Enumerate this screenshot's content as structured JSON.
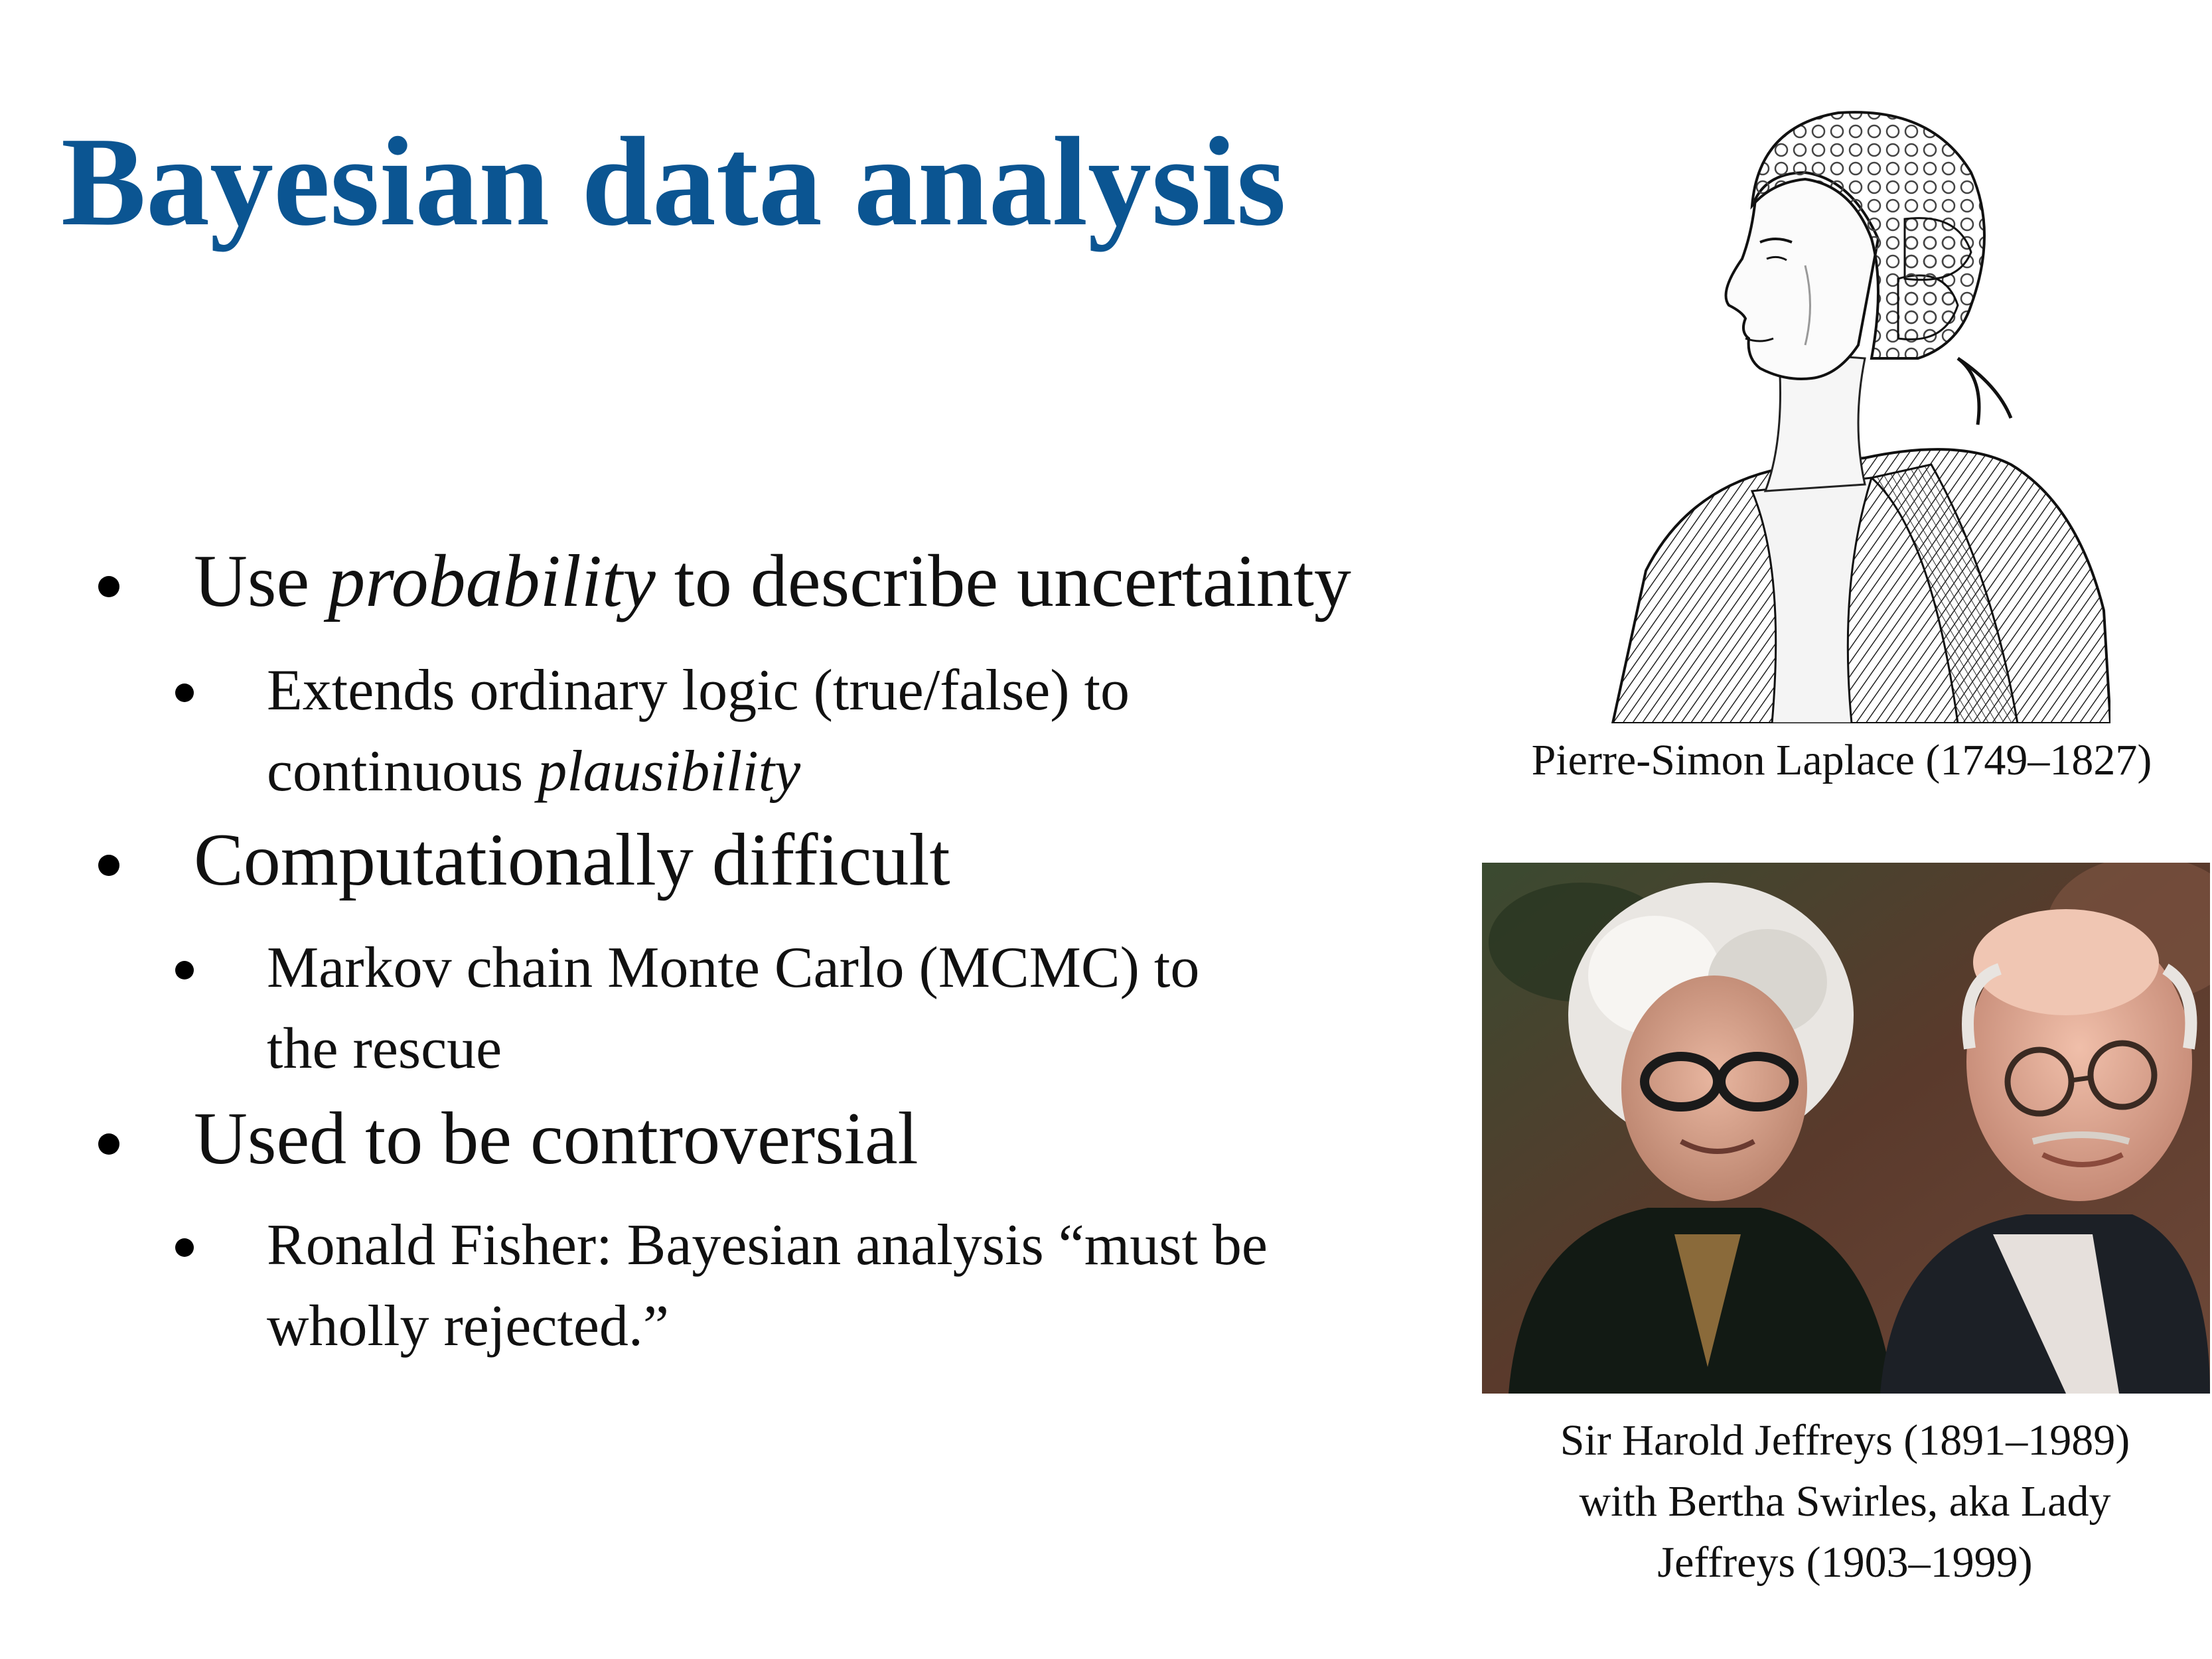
{
  "slide": {
    "title": "Bayesian data analysis"
  },
  "bullets": [
    {
      "pre": "Use ",
      "em": "probability",
      "post": " to describe uncertainty",
      "sub": {
        "line1": "Extends ordinary logic (true/false) to",
        "line2_pre": "continuous ",
        "line2_em": "plausibility"
      }
    },
    {
      "text": "Computationally difficult",
      "sub": {
        "line1": "Markov chain Monte Carlo (MCMC) to",
        "line2": "the rescue"
      }
    },
    {
      "text": "Used to be controversial",
      "sub": {
        "line1": "Ronald Fisher: Bayesian analysis “must be",
        "line2": "wholly rejected.”"
      }
    }
  ],
  "images": {
    "laplace": {
      "caption": "Pierre-Simon Laplace (1749–1827)"
    },
    "jeffreys": {
      "caption_line1": "Sir Harold Jeffreys (1891–1989)",
      "caption_line2": "with Bertha Swirles, aka Lady",
      "caption_line3": "Jeffreys (1903–1999)"
    }
  }
}
